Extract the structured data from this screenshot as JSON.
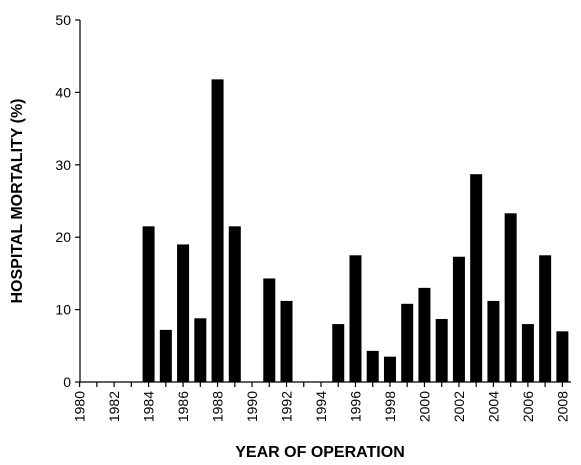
{
  "chart_data": {
    "type": "bar",
    "xlabel": "YEAR OF OPERATION",
    "ylabel": "HOSPITAL MORTALITY (%)",
    "categories": [
      "1980",
      null,
      "1982",
      null,
      "1984",
      null,
      "1986",
      null,
      "1988",
      null,
      "1990",
      null,
      "1992",
      null,
      "1994",
      null,
      "1996",
      null,
      "1998",
      null,
      "2000",
      null,
      "2002",
      null,
      "2004",
      null,
      "2006",
      null,
      "2008"
    ],
    "values": [
      0,
      0,
      0,
      0,
      21.5,
      7.2,
      19,
      8.8,
      41.8,
      21.5,
      0,
      14.3,
      11.2,
      0,
      0,
      8,
      17.5,
      4.3,
      3.5,
      10.8,
      13,
      8.7,
      17.3,
      28.7,
      11.2,
      23.3,
      8,
      17.5,
      7
    ],
    "color": "#000000",
    "ylim": [
      0,
      50
    ],
    "yticks": [
      0,
      10,
      20,
      30,
      40,
      50
    ],
    "grid": false
  }
}
